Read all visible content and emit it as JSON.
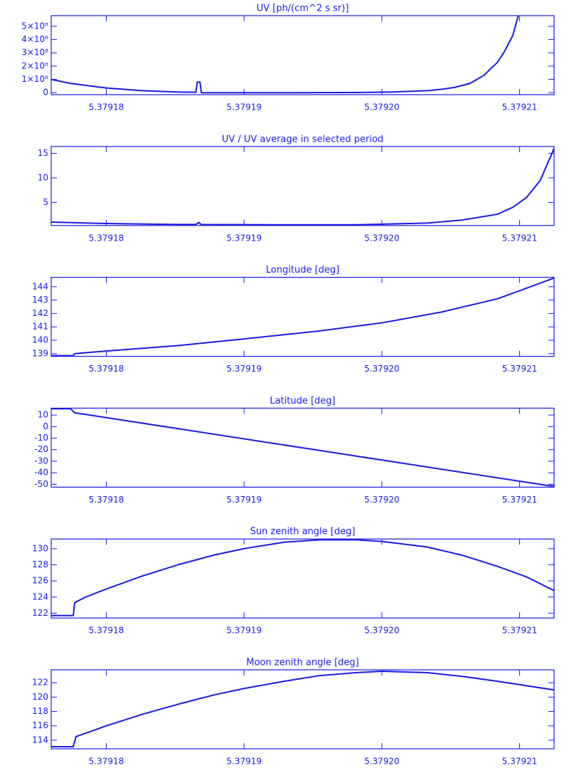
{
  "chart_data": [
    {
      "type": "line",
      "title": "UV [ph/(cm^2 s sr)]",
      "color": "#1a1ae6",
      "x": [
        5.379176,
        5.3791774,
        5.37918,
        5.3791826,
        5.3791852,
        5.3791865,
        5.3791866,
        5.3791868,
        5.3791869,
        5.3791929,
        5.3791981,
        5.3792007,
        5.3792033,
        5.3792043,
        5.3792053,
        5.3792064,
        5.3792074,
        5.3792084,
        5.3792089,
        5.3792095,
        5.3792099
      ],
      "values": [
        100000000,
        70000000,
        35000000,
        15000000,
        5000000,
        3000000,
        80000000,
        80000000,
        0,
        0,
        1000000,
        5000000,
        15000000,
        25000000,
        40000000,
        70000000,
        130000000,
        230000000,
        310000000,
        430000000,
        580000000
      ],
      "xlim": [
        5.379176,
        5.3792125
      ],
      "xticks": [
        5.37918,
        5.37919,
        {
          "value": 5.3792,
          "label": "5.37920"
        },
        5.37921
      ],
      "ylim": [
        -15000000,
        580000000
      ],
      "yticks": [
        0,
        {
          "value": 100000000,
          "label": "1×10⁸"
        },
        {
          "value": 200000000,
          "label": "2×10⁸"
        },
        {
          "value": 300000000,
          "label": "3×10⁸"
        },
        {
          "value": 400000000,
          "label": "4×10⁸"
        },
        {
          "value": 500000000,
          "label": "5×10⁸"
        }
      ]
    },
    {
      "type": "line",
      "title": "UV / UV average in selected period",
      "color": "#1a1ae6",
      "x": [
        5.379176,
        5.37918,
        5.3791852,
        5.3791865,
        5.3791867,
        5.3791869,
        5.3791929,
        5.3791981,
        5.3792033,
        5.3792058,
        5.3792084,
        5.3792095,
        5.3792105,
        5.3792115,
        5.3792125
      ],
      "values": [
        1.0,
        0.7,
        0.5,
        0.5,
        0.9,
        0.5,
        0.45,
        0.45,
        0.8,
        1.4,
        2.6,
        4,
        6,
        9.5,
        16
      ],
      "xlim": [
        5.379176,
        5.3792125
      ],
      "xticks": [
        5.37918,
        5.37919,
        {
          "value": 5.3792,
          "label": "5.37920"
        },
        5.37921
      ],
      "ylim": [
        0.3,
        16.4
      ],
      "yticks": [
        5,
        10,
        15
      ]
    },
    {
      "type": "line",
      "title": "Longitude [deg]",
      "color": "#1a1ae6",
      "x": [
        5.379176,
        5.3791776,
        5.3791777,
        5.37918,
        5.3791852,
        5.37919,
        5.3791955,
        5.3792,
        5.3792043,
        5.3792084,
        5.37921,
        5.3792125
      ],
      "values": [
        138.85,
        138.85,
        139.0,
        139.2,
        139.6,
        140.1,
        140.7,
        141.3,
        142.1,
        143.1,
        143.7,
        144.65
      ],
      "xlim": [
        5.379176,
        5.3792125
      ],
      "xticks": [
        5.37918,
        5.37919,
        {
          "value": 5.3792,
          "label": "5.37920"
        },
        5.37921
      ],
      "ylim": [
        138.8,
        144.7
      ],
      "yticks": [
        139,
        140,
        141,
        142,
        143,
        144
      ]
    },
    {
      "type": "line",
      "title": "Latitude [deg]",
      "color": "#1a1ae6",
      "x": [
        5.379176,
        5.3791774,
        5.3791777,
        5.379212,
        5.3792125
      ],
      "values": [
        15.5,
        15.5,
        12,
        -51,
        -51.5
      ],
      "xlim": [
        5.379176,
        5.3792125
      ],
      "xticks": [
        5.37918,
        5.37919,
        {
          "value": 5.3792,
          "label": "5.37920"
        },
        5.37921
      ],
      "ylim": [
        -52.5,
        16
      ],
      "yticks": [
        10,
        0,
        -10,
        -20,
        -30,
        -40,
        -50
      ]
    },
    {
      "type": "line",
      "title": "Sun zenith angle [deg]",
      "color": "#1a1ae6",
      "x": [
        5.379176,
        5.3791776,
        5.3791777,
        5.3791785,
        5.37918,
        5.3791826,
        5.3791852,
        5.3791878,
        5.37919,
        5.3791929,
        5.3791955,
        5.3791981,
        5.3792,
        5.3792033,
        5.3792058,
        5.3792084,
        5.3792105,
        5.3792125
      ],
      "values": [
        121.7,
        121.7,
        123.3,
        124.0,
        125,
        126.6,
        128,
        129.2,
        130.0,
        130.8,
        131.1,
        131.1,
        130.9,
        130.2,
        129.2,
        127.8,
        126.5,
        124.8
      ],
      "xlim": [
        5.379176,
        5.3792125
      ],
      "xticks": [
        5.37918,
        5.37919,
        {
          "value": 5.3792,
          "label": "5.37920"
        },
        5.37921
      ],
      "ylim": [
        121.4,
        131.2
      ],
      "yticks": [
        122,
        124,
        126,
        128,
        130
      ]
    },
    {
      "type": "line",
      "title": "Moon zenith angle [deg]",
      "color": "#1a1ae6",
      "x": [
        5.379176,
        5.3791776,
        5.3791778,
        5.37918,
        5.3791826,
        5.3791852,
        5.3791878,
        5.37919,
        5.3791929,
        5.3791955,
        5.3791981,
        5.3792,
        5.3792033,
        5.3792058,
        5.3792084,
        5.3792125
      ],
      "values": [
        113.1,
        113.1,
        114.5,
        116,
        117.6,
        119,
        120.3,
        121.2,
        122.2,
        123,
        123.4,
        123.6,
        123.4,
        122.9,
        122.2,
        121.0
      ],
      "xlim": [
        5.379176,
        5.3792125
      ],
      "xticks": [
        5.37918,
        5.37919,
        {
          "value": 5.3792,
          "label": "5.37920"
        },
        5.37921
      ],
      "ylim": [
        112.8,
        123.8
      ],
      "yticks": [
        114,
        116,
        118,
        120,
        122
      ]
    }
  ]
}
